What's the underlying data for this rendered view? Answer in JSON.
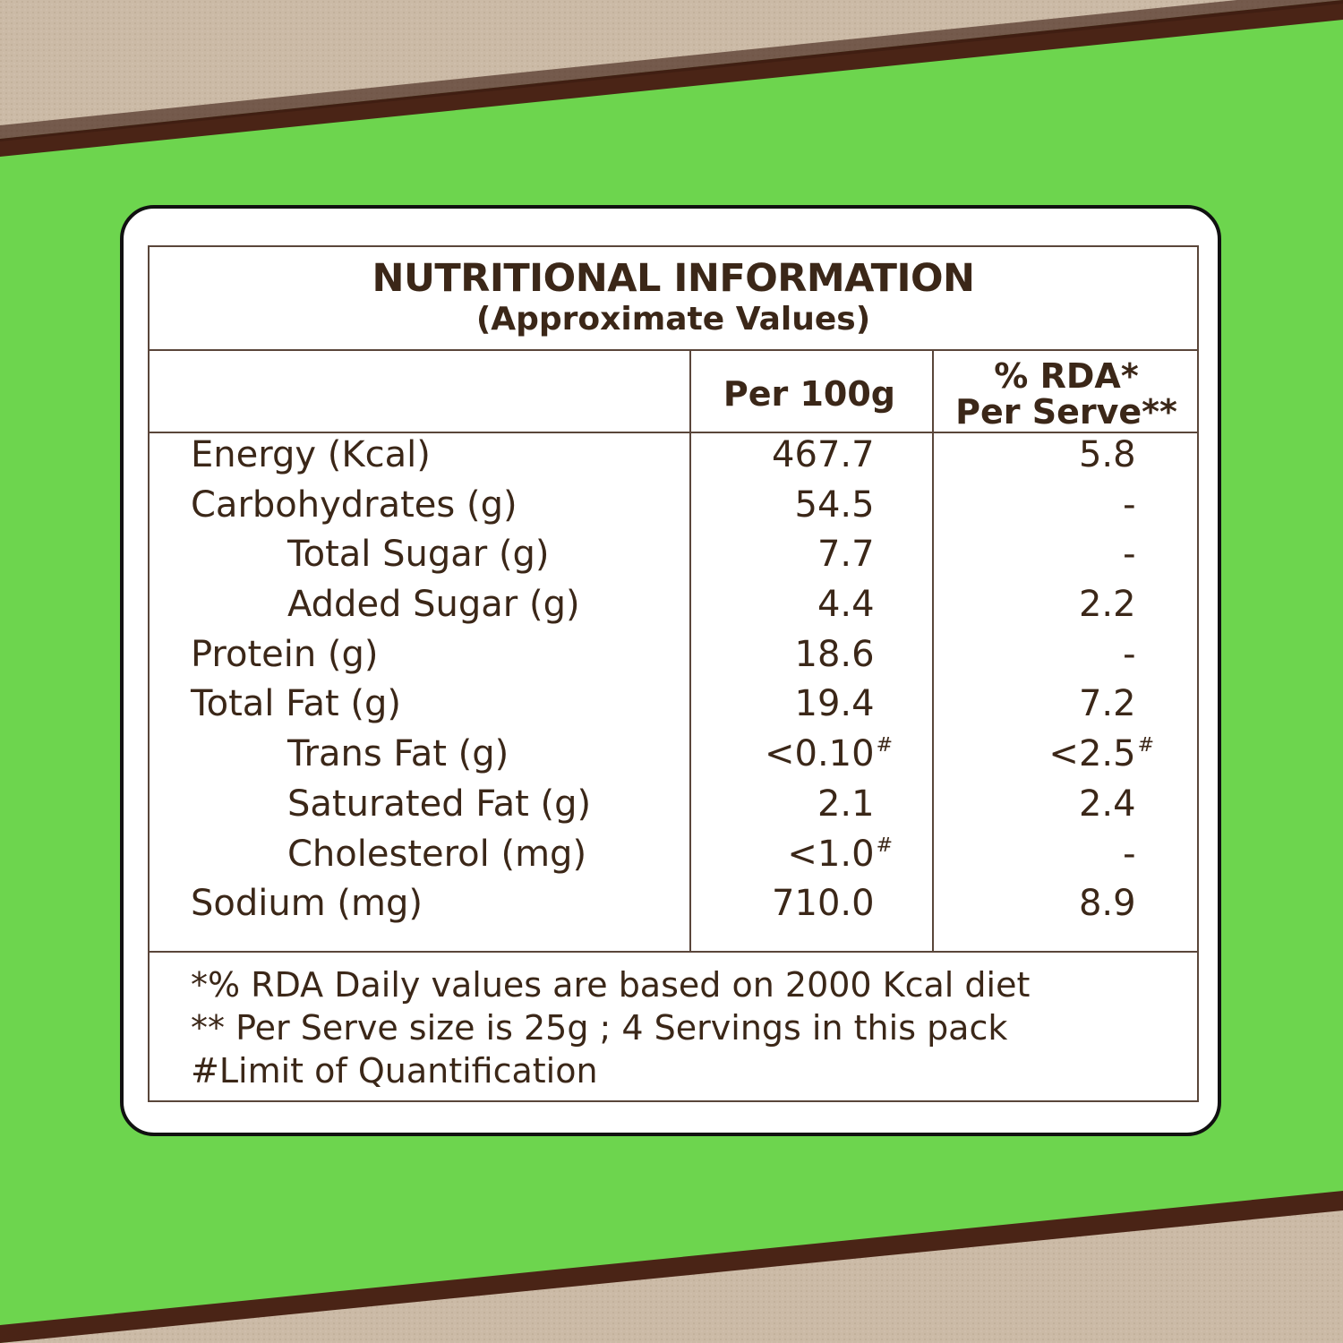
{
  "title": "NUTRITIONAL INFORMATION",
  "subtitle": "(Approximate Values)",
  "columns": {
    "per100g": "Per 100g",
    "rda_line1": "% RDA*",
    "rda_line2": "Per Serve**"
  },
  "rows": [
    {
      "name": "Energy (Kcal)",
      "per100g": "467.7",
      "rda": "5.8"
    },
    {
      "name": "Carbohydrates (g)",
      "per100g": "54.5",
      "rda": "-"
    },
    {
      "name": "Total Sugar (g)",
      "per100g": "7.7",
      "rda": "-"
    },
    {
      "name": "Added Sugar (g)",
      "per100g": "4.4",
      "rda": "2.2"
    },
    {
      "name": "Protein (g)",
      "per100g": "18.6",
      "rda": "-"
    },
    {
      "name": "Total Fat (g)",
      "per100g": "19.4",
      "rda": "7.2"
    },
    {
      "name": "Trans Fat (g)",
      "per100g": "<0.10",
      "per100g_mark": "#",
      "rda": "<2.5",
      "rda_mark": "#"
    },
    {
      "name": "Saturated Fat (g)",
      "per100g": "2.1",
      "rda": "2.4"
    },
    {
      "name": "Cholesterol (mg)",
      "per100g": "<1.0",
      "per100g_mark": "#",
      "rda": "-"
    },
    {
      "name": "Sodium (mg)",
      "per100g": "710.0",
      "rda": "8.9"
    }
  ],
  "notes": [
    "*% RDA Daily values are based on 2000 Kcal diet",
    "** Per Serve size is 25g ; 4 Servings in this pack",
    "#Limit of Quantification"
  ],
  "colors": {
    "background_green": "#6dd54e",
    "kraft_paper": "#c9b8a4",
    "torn_edge_brown": "#4a2416",
    "text_brown": "#3b2718",
    "card_white": "#ffffff"
  }
}
